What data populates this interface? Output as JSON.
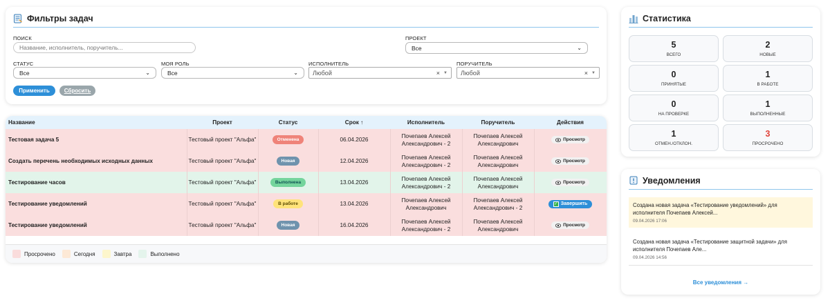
{
  "filters": {
    "title": "Фильтры задач",
    "search_label": "ПОИСК",
    "search_placeholder": "Название, исполнитель, поручитель...",
    "project_label": "ПРОЕКТ",
    "project_value": "Все",
    "status_label": "СТАТУС",
    "status_value": "Все",
    "role_label": "МОЯ РОЛЬ",
    "role_value": "Все",
    "assignee_label": "ИСПОЛНИТЕЛЬ",
    "assignee_value": "Любой",
    "assigner_label": "ПОРУЧИТЕЛЬ",
    "assigner_value": "Любой",
    "apply_label": "Применить",
    "reset_label": "Сбросить"
  },
  "table": {
    "headers": {
      "name": "Название",
      "project": "Проект",
      "status": "Статус",
      "deadline": "Срок ↑",
      "assignee": "Исполнитель",
      "assigner": "Поручитель",
      "actions": "Действия"
    },
    "rows": [
      {
        "name": "Тестовая задача 5",
        "project": "Тестовый проект \"Альфа\"",
        "status": "Отменена",
        "deadline": "06.04.2026",
        "assignee": "Почепаев Алексей Александрович - 2",
        "assigner": "Почепаев Алексей Александрович",
        "action": "Просмотр"
      },
      {
        "name": "Создать перечень необходимых исходных данных",
        "project": "Тестовый проект \"Альфа\"",
        "status": "Новая",
        "deadline": "12.04.2026",
        "assignee": "Почепаев Алексей Александрович - 2",
        "assigner": "Почепаев Алексей Александрович",
        "action": "Просмотр"
      },
      {
        "name": "Тестирование часов",
        "project": "Тестовый проект \"Альфа\"",
        "status": "Выполнена",
        "deadline": "13.04.2026",
        "assignee": "Почепаев Алексей Александрович - 2",
        "assigner": "Почепаев Алексей Александрович",
        "action": "Просмотр"
      },
      {
        "name": "Тестирование уведомлений",
        "project": "Тестовый проект \"Альфа\"",
        "status": "В работе",
        "deadline": "13.04.2026",
        "assignee": "Почепаев Алексей Александрович",
        "assigner": "Почепаев Алексей Александрович - 2",
        "action": "Завершить"
      },
      {
        "name": "Тестирование уведомлений",
        "project": "Тестовый проект \"Альфа\"",
        "status": "Новая",
        "deadline": "16.04.2026",
        "assignee": "Почепаев Алексей Александрович - 2",
        "assigner": "Почепаев Алексей Александрович",
        "action": "Просмотр"
      }
    ],
    "legend": [
      {
        "label": "Просрочено",
        "color": "#fadcdc"
      },
      {
        "label": "Сегодня",
        "color": "#fde9d6"
      },
      {
        "label": "Завтра",
        "color": "#fdf6cc"
      },
      {
        "label": "Выполнено",
        "color": "#e4f4ec"
      }
    ]
  },
  "stats": {
    "title": "Статистика",
    "items": [
      {
        "value": "5",
        "label": "ВСЕГО"
      },
      {
        "value": "2",
        "label": "НОВЫЕ"
      },
      {
        "value": "0",
        "label": "ПРИНЯТЫЕ"
      },
      {
        "value": "1",
        "label": "В РАБОТЕ"
      },
      {
        "value": "0",
        "label": "НА ПРОВЕРКЕ"
      },
      {
        "value": "1",
        "label": "ВЫПОЛНЕННЫЕ"
      },
      {
        "value": "1",
        "label": "ОТМЕН./ОТКЛОН."
      },
      {
        "value": "3",
        "label": "ПРОСРОЧЕНО"
      }
    ]
  },
  "notifications": {
    "title": "Уведомления",
    "items": [
      {
        "text": "Создана новая задача «Тестирование уведомлений» для исполнителя Почепаев Алексей...",
        "time": "09.04.2026 17:06"
      },
      {
        "text": "Создана новая задача «Тестирование защитной задачи» для исполнителя Почепаев Але...",
        "time": "09.04.2026 14:56"
      }
    ],
    "all_link": "Все уведомления →"
  }
}
